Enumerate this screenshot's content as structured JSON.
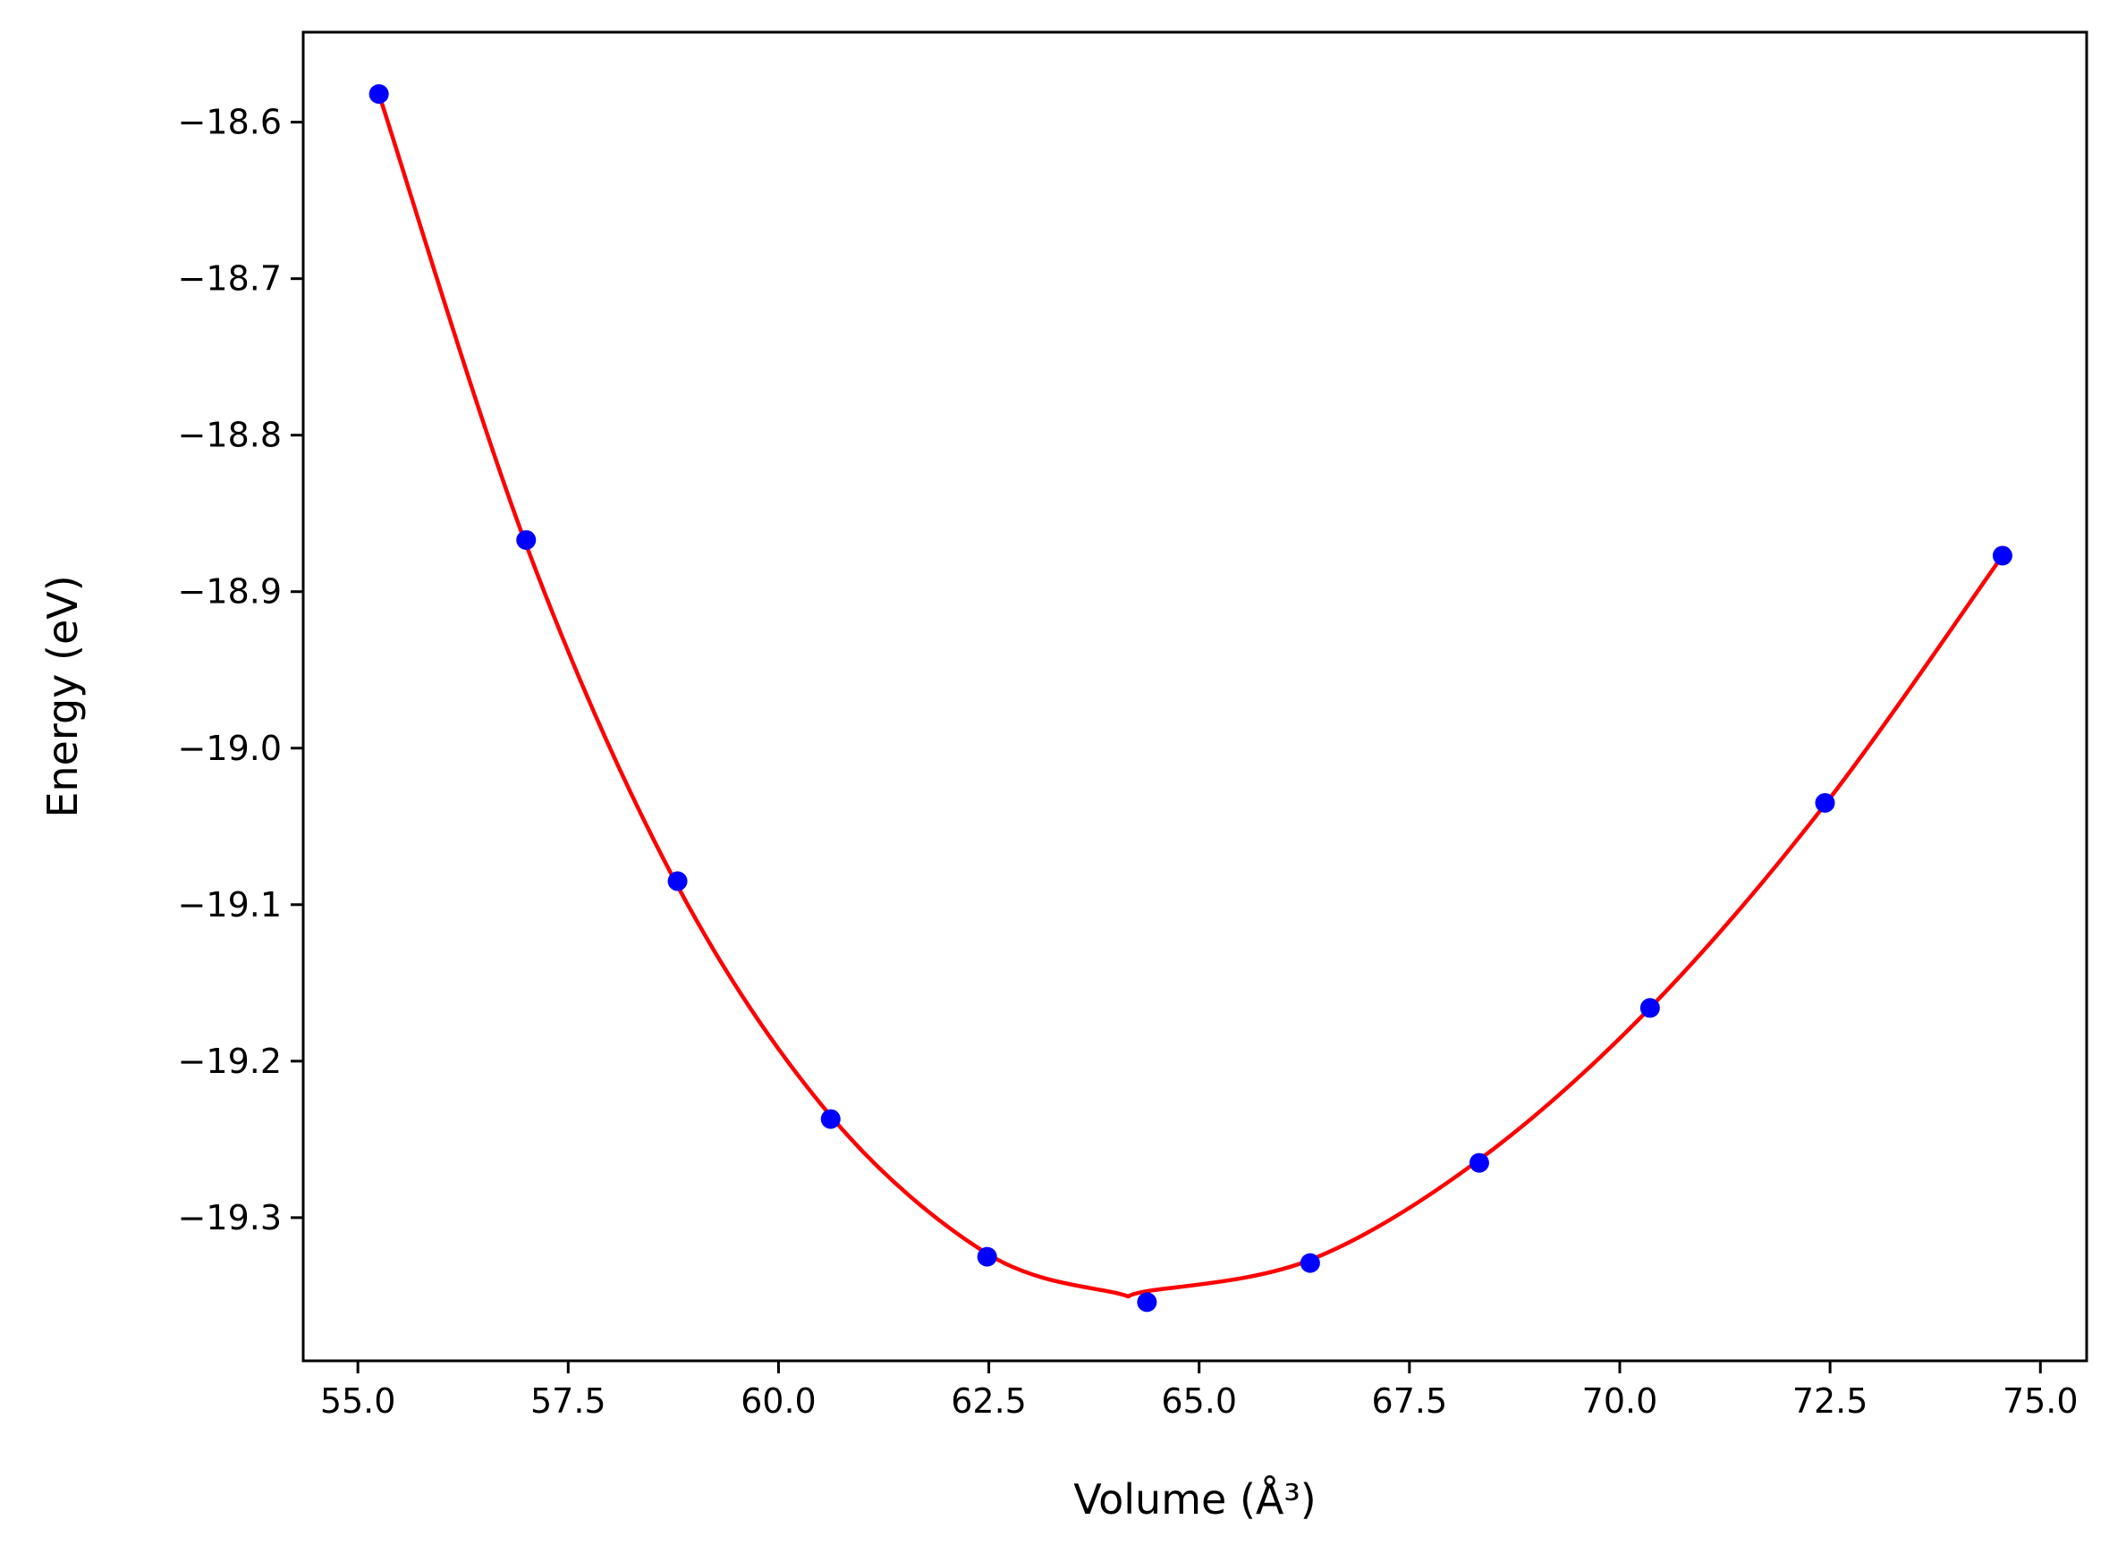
{
  "chart_data": {
    "type": "scatter",
    "title": "",
    "xlabel": "Volume (Å³)",
    "ylabel": "Energy (eV)",
    "xlim": [
      54.35,
      75.55
    ],
    "ylim": [
      -19.3915,
      -18.5425
    ],
    "xticks": [
      55.0,
      57.5,
      60.0,
      62.5,
      65.0,
      67.5,
      70.0,
      72.5,
      75.0
    ],
    "xtick_labels": [
      "55.0",
      "57.5",
      "60.0",
      "62.5",
      "65.0",
      "67.5",
      "70.0",
      "72.5",
      "75.0"
    ],
    "yticks": [
      -18.6,
      -18.7,
      -18.8,
      -18.9,
      -19.0,
      -19.1,
      -19.2,
      -19.3
    ],
    "ytick_labels": [
      "−18.6",
      "−18.7",
      "−18.8",
      "−18.9",
      "−19.0",
      "−19.1",
      "−19.2",
      "−19.3"
    ],
    "grid": false,
    "series": [
      {
        "kind": "points",
        "color": "#0000ff",
        "x": [
          55.25,
          57.0,
          58.8,
          60.62,
          62.48,
          64.38,
          66.32,
          68.33,
          70.36,
          72.44,
          74.55
        ],
        "y": [
          -18.582,
          -18.867,
          -19.085,
          -19.237,
          -19.325,
          -19.354,
          -19.329,
          -19.265,
          -19.166,
          -19.035,
          -18.877
        ]
      },
      {
        "kind": "line",
        "color": "#ff0000",
        "x": [
          55.25,
          57.0,
          58.8,
          60.62,
          62.48,
          64.0,
          64.38,
          66.32,
          68.33,
          70.36,
          72.44,
          74.55
        ],
        "y": [
          -18.582,
          -18.87,
          -19.088,
          -19.235,
          -19.323,
          -19.348,
          -19.347,
          -19.327,
          -19.263,
          -19.166,
          -19.036,
          -18.877
        ]
      }
    ]
  }
}
